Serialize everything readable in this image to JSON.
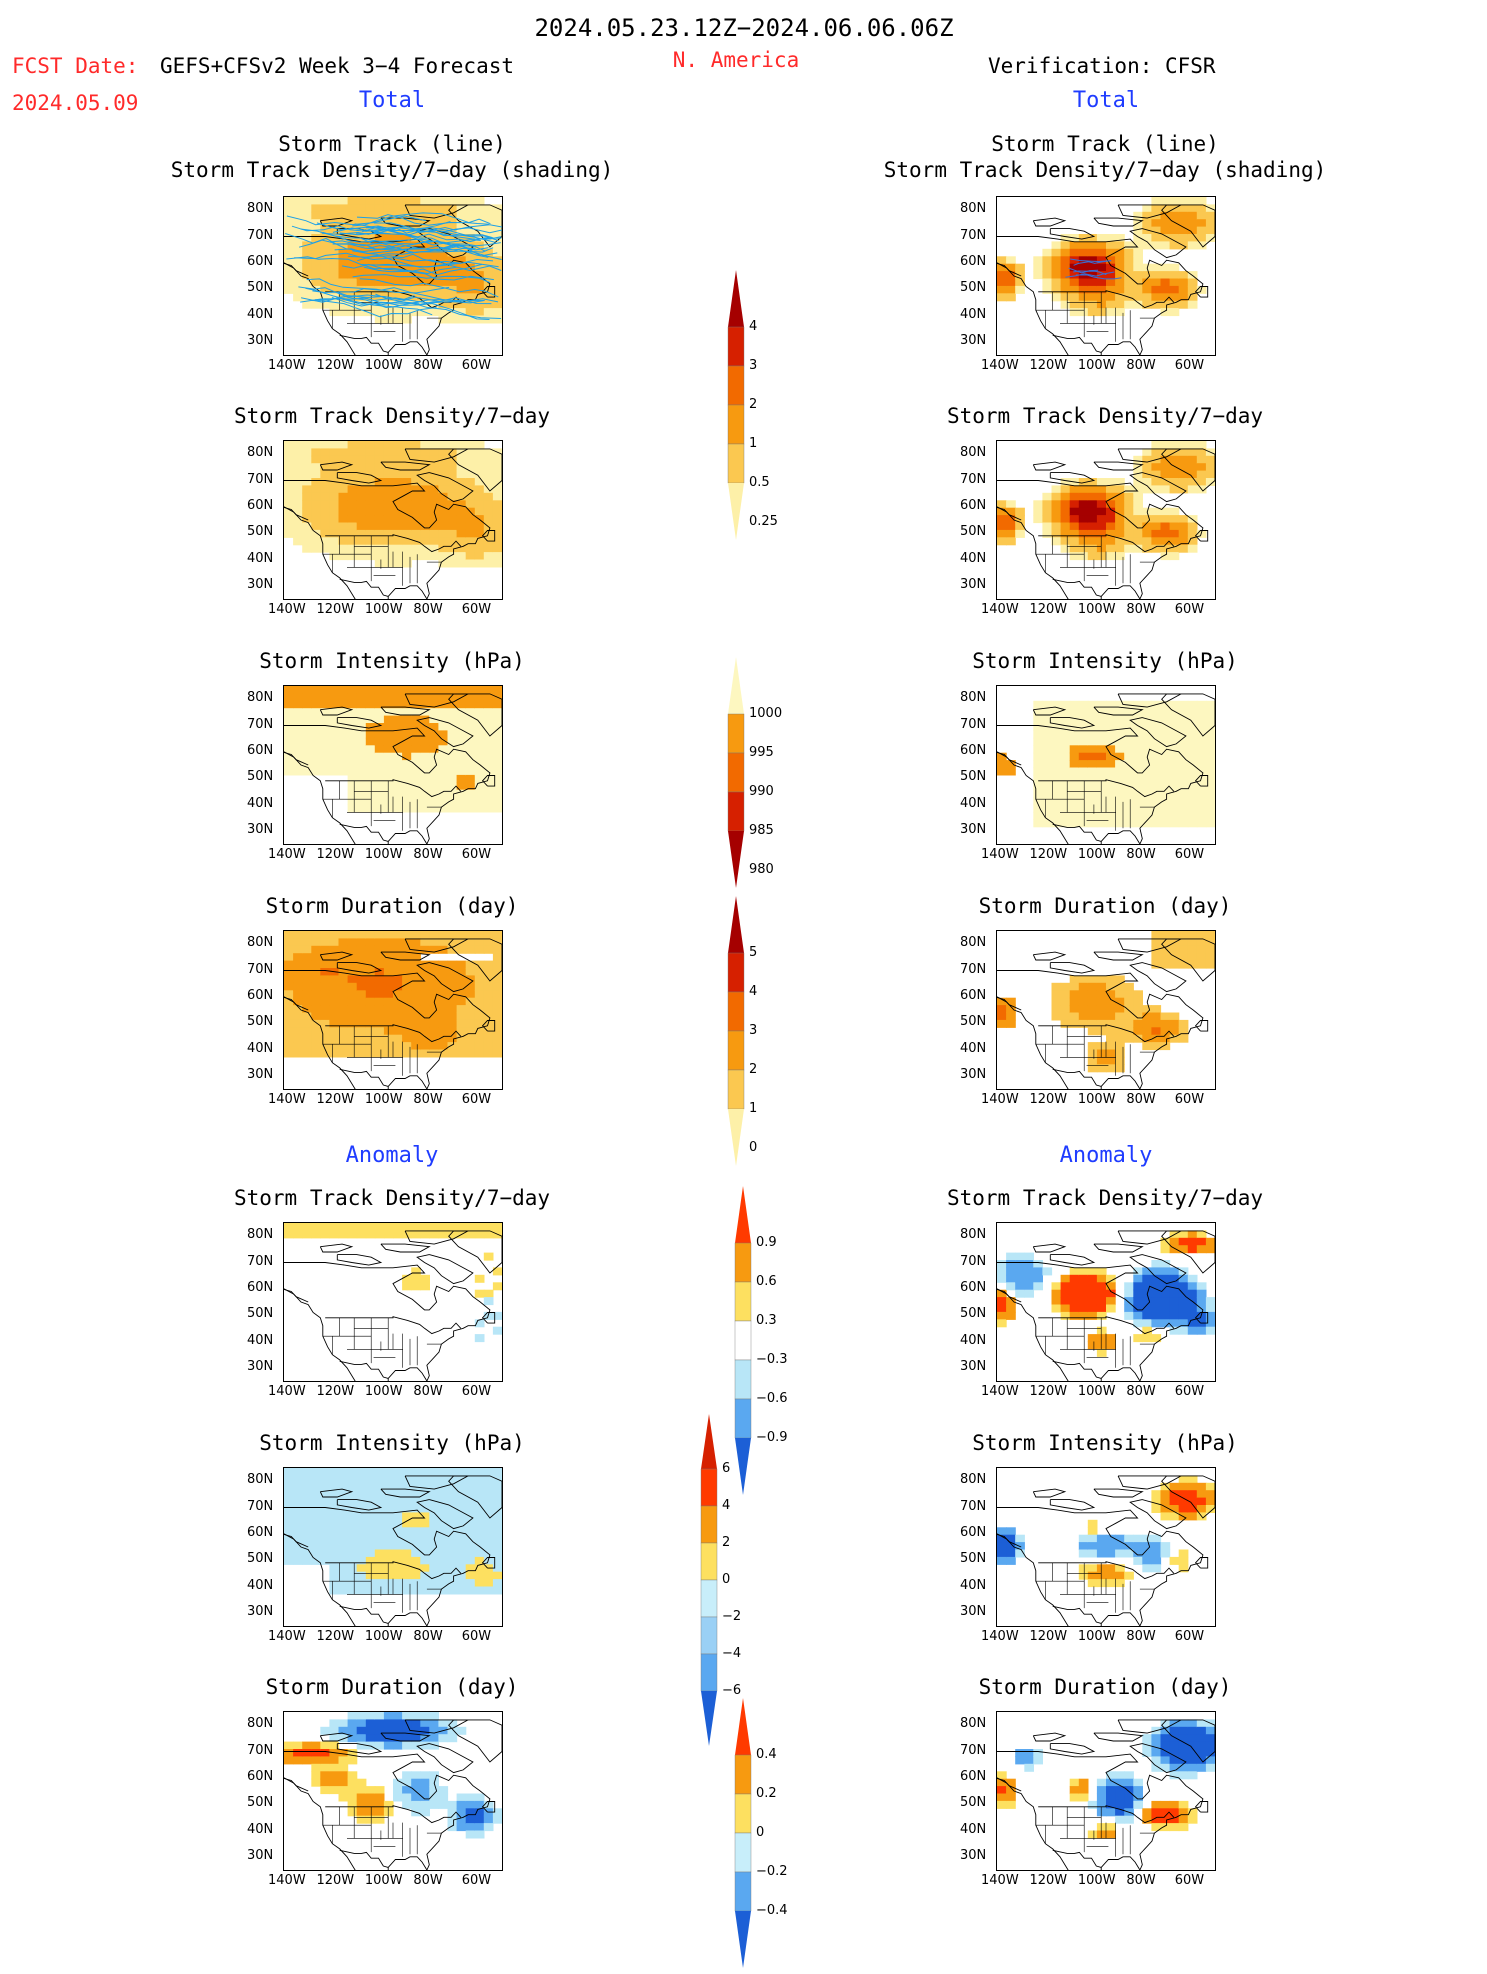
{
  "header": {
    "date_range": "2024.05.23.12Z−2024.06.06.06Z",
    "fcst_label": "FCST Date:",
    "fcst_model": "GEFS+CFSv2 Week 3−4 Forecast",
    "fcst_date": "2024.05.09",
    "region": "N. America",
    "verification": "Verification: CFSR"
  },
  "sections": {
    "total": "Total",
    "anomaly": "Anomaly"
  },
  "panels": [
    {
      "id": "trk-f",
      "t1": "Storm Track (line)",
      "t2": "Storm Track Density/7−day (shading)"
    },
    {
      "id": "trk-v",
      "t1": "Storm Track (line)",
      "t2": "Storm Track Density/7−day (shading)"
    },
    {
      "id": "den-f",
      "t1": "Storm Track Density/7−day"
    },
    {
      "id": "den-v",
      "t1": "Storm Track Density/7−day"
    },
    {
      "id": "int-f",
      "t1": "Storm Intensity (hPa)"
    },
    {
      "id": "int-v",
      "t1": "Storm Intensity (hPa)"
    },
    {
      "id": "dur-f",
      "t1": "Storm Duration (day)"
    },
    {
      "id": "dur-v",
      "t1": "Storm Duration (day)"
    },
    {
      "id": "aden-f",
      "t1": "Storm Track Density/7−day"
    },
    {
      "id": "aden-v",
      "t1": "Storm Track Density/7−day"
    },
    {
      "id": "aint-f",
      "t1": "Storm Intensity (hPa)"
    },
    {
      "id": "aint-v",
      "t1": "Storm Intensity (hPa)"
    },
    {
      "id": "adur-f",
      "t1": "Storm Duration (day)"
    },
    {
      "id": "adur-v",
      "t1": "Storm Duration (day)"
    }
  ],
  "axes": {
    "lat_ticks": [
      "80N",
      "70N",
      "60N",
      "50N",
      "40N",
      "30N"
    ],
    "lon_ticks": [
      "140W",
      "120W",
      "100W",
      "80W",
      "60W"
    ],
    "lon_range": [
      -140,
      -50
    ],
    "lat_range": [
      25,
      85
    ]
  },
  "colorbars": [
    {
      "id": "cb-density",
      "labels": [
        "4",
        "3",
        "2",
        "1",
        "0.5",
        "0.25"
      ],
      "colors": [
        "#a50000",
        "#d62000",
        "#f26a00",
        "#f79a10",
        "#fbc850",
        "#fdf0a8"
      ]
    },
    {
      "id": "cb-intensity",
      "labels": [
        "1000",
        "995",
        "990",
        "985",
        "980"
      ],
      "colors": [
        "#fdf7c0",
        "#f79a10",
        "#f26a00",
        "#d62000",
        "#a50000"
      ]
    },
    {
      "id": "cb-duration",
      "labels": [
        "5",
        "4",
        "3",
        "2",
        "1",
        "0"
      ],
      "colors": [
        "#a50000",
        "#d62000",
        "#f26a00",
        "#f79a10",
        "#fbc850",
        "#fdf0a8"
      ]
    },
    {
      "id": "cb-anom-density",
      "labels": [
        "0.9",
        "0.6",
        "0.3",
        "−0.3",
        "−0.6",
        "−0.9"
      ],
      "colors": [
        "#ff3a00",
        "#f79a10",
        "#fde060",
        "#ffffff",
        "#b8e6f7",
        "#5aa8f0",
        "#1c5fd6"
      ]
    },
    {
      "id": "cb-anom-intensity",
      "labels": [
        "6",
        "4",
        "2",
        "0",
        "−2",
        "−4",
        "−6"
      ],
      "colors": [
        "#d62000",
        "#ff3a00",
        "#f79a10",
        "#fde060",
        "#c8eefa",
        "#9ad0f5",
        "#5aa8f0",
        "#1c5fd6"
      ]
    },
    {
      "id": "cb-anom-duration",
      "labels": [
        "0.4",
        "0.2",
        "0",
        "−0.2",
        "−0.4"
      ],
      "colors": [
        "#ff3a00",
        "#f79a10",
        "#fde060",
        "#c8eefa",
        "#5aa8f0",
        "#1c5fd6"
      ]
    }
  ],
  "chart_data": [
    {
      "type": "heatmap",
      "panel": "trk-f",
      "variable": "storm track + density",
      "units": "per 7-day",
      "xlabel": "",
      "ylabel": "",
      "levels": [
        0.25,
        0.5,
        1,
        2,
        3,
        4
      ]
    },
    {
      "type": "heatmap",
      "panel": "trk-v",
      "variable": "storm track + density",
      "units": "per 7-day",
      "levels": [
        0.25,
        0.5,
        1,
        2,
        3,
        4
      ]
    },
    {
      "type": "heatmap",
      "panel": "den-f",
      "variable": "density",
      "levels": [
        0.25,
        0.5,
        1,
        2,
        3,
        4
      ]
    },
    {
      "type": "heatmap",
      "panel": "den-v",
      "variable": "density",
      "levels": [
        0.25,
        0.5,
        1,
        2,
        3,
        4
      ]
    },
    {
      "type": "heatmap",
      "panel": "int-f",
      "variable": "intensity",
      "units": "hPa",
      "levels": [
        980,
        985,
        990,
        995,
        1000
      ]
    },
    {
      "type": "heatmap",
      "panel": "int-v",
      "variable": "intensity",
      "units": "hPa",
      "levels": [
        980,
        985,
        990,
        995,
        1000
      ]
    },
    {
      "type": "heatmap",
      "panel": "dur-f",
      "variable": "duration",
      "units": "day",
      "levels": [
        0,
        1,
        2,
        3,
        4,
        5
      ]
    },
    {
      "type": "heatmap",
      "panel": "dur-v",
      "variable": "duration",
      "units": "day",
      "levels": [
        0,
        1,
        2,
        3,
        4,
        5
      ]
    },
    {
      "type": "heatmap",
      "panel": "aden-f",
      "variable": "density anomaly",
      "levels": [
        -0.9,
        -0.6,
        -0.3,
        0.3,
        0.6,
        0.9
      ]
    },
    {
      "type": "heatmap",
      "panel": "aden-v",
      "variable": "density anomaly",
      "levels": [
        -0.9,
        -0.6,
        -0.3,
        0.3,
        0.6,
        0.9
      ]
    },
    {
      "type": "heatmap",
      "panel": "aint-f",
      "variable": "intensity anomaly",
      "units": "hPa",
      "levels": [
        -6,
        -4,
        -2,
        0,
        2,
        4,
        6
      ]
    },
    {
      "type": "heatmap",
      "panel": "aint-v",
      "variable": "intensity anomaly",
      "units": "hPa",
      "levels": [
        -6,
        -4,
        -2,
        0,
        2,
        4,
        6
      ]
    },
    {
      "type": "heatmap",
      "panel": "adur-f",
      "variable": "duration anomaly",
      "units": "day",
      "levels": [
        -0.4,
        -0.2,
        0,
        0.2,
        0.4
      ]
    },
    {
      "type": "heatmap",
      "panel": "adur-v",
      "variable": "duration anomaly",
      "units": "day",
      "levels": [
        -0.4,
        -0.2,
        0,
        0.2,
        0.4
      ]
    }
  ]
}
